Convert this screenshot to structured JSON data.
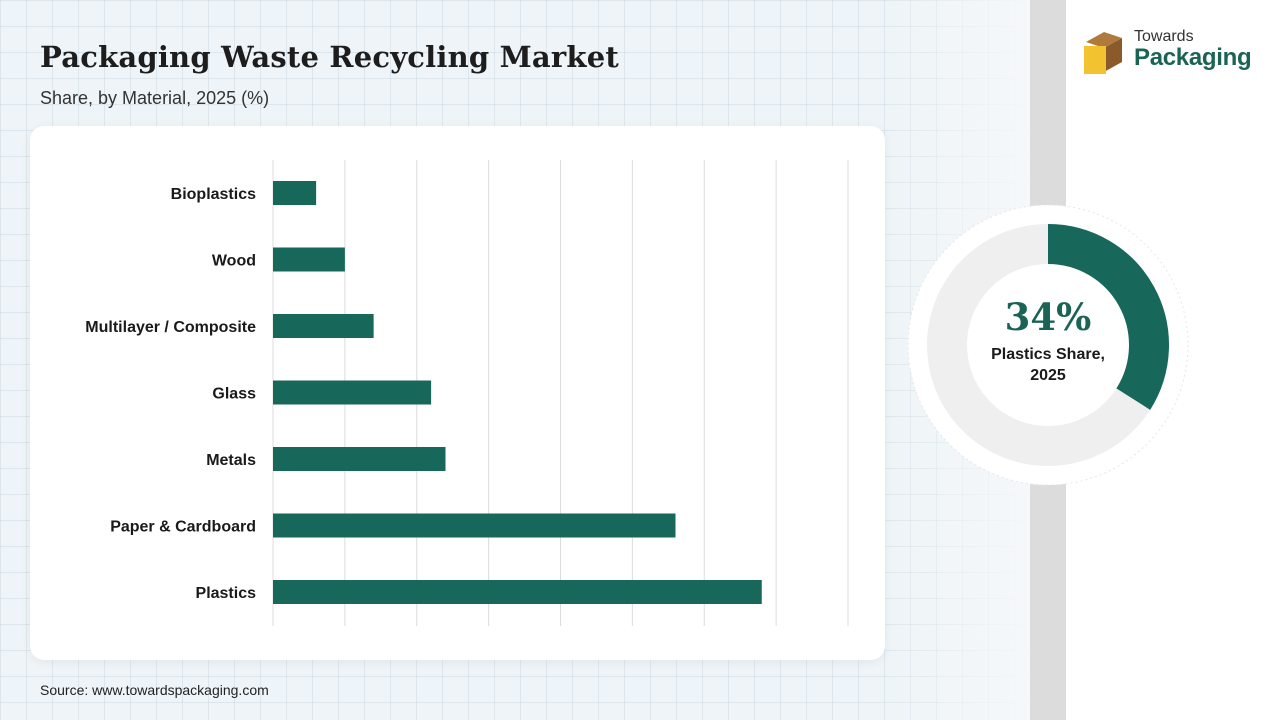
{
  "header": {
    "title": "Packaging Waste Recycling Market",
    "subtitle": "Share, by Material, 2025 (%)"
  },
  "logo": {
    "word1": "Towards",
    "word2": "Packaging"
  },
  "donut": {
    "value": "34%",
    "caption": "Plastics Share, 2025",
    "fraction": 0.34
  },
  "footer": {
    "source": "Source: www.towardspackaging.com"
  },
  "colors": {
    "bar": "#17675a",
    "accent": "#1b6455",
    "donut_track": "#efefef"
  },
  "chart_data": {
    "type": "bar",
    "orientation": "horizontal",
    "categories": [
      "Bioplastics",
      "Wood",
      "Multilayer / Composite",
      "Glass",
      "Metals",
      "Paper & Cardboard",
      "Plastics"
    ],
    "values": [
      3,
      5,
      7,
      11,
      12,
      28,
      34
    ],
    "xlim": [
      0,
      40
    ],
    "grid": true,
    "title": "Packaging Waste Recycling Market",
    "subtitle": "Share, by Material, 2025 (%)"
  }
}
